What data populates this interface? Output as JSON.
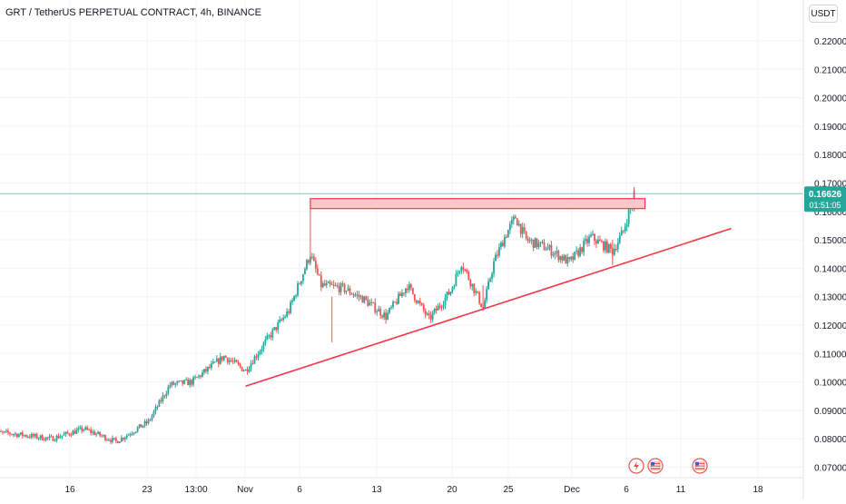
{
  "header": {
    "title": "GRT / TetherUS PERPETUAL CONTRACT, 4h, BINANCE",
    "currency_button": "USDT"
  },
  "price_tag": {
    "price": "0.16626",
    "countdown": "01:51:05"
  },
  "colors": {
    "up": "#26a69a",
    "down": "#ef5350",
    "drawing": "#f23645",
    "zone_fill": "#f8c8cc",
    "price_line": "#26a69a",
    "grid": "#f0f3fa",
    "axis_text": "#131722"
  },
  "event_icons": [
    {
      "icon": "dividend-lightning-icon",
      "date": "Dec 7"
    },
    {
      "icon": "us-flag-event-icon",
      "date": "Dec 8"
    },
    {
      "icon": "us-flag-event-icon",
      "date": "Dec 12"
    }
  ],
  "chart_data": {
    "type": "candlestick",
    "timeframe": "4h",
    "symbol": "GRT / TetherUS PERPETUAL CONTRACT",
    "exchange": "BINANCE",
    "last_price": 0.16626,
    "y_ticks": [
      "0.22000",
      "0.21000",
      "0.20000",
      "0.19000",
      "0.18000",
      "0.17000",
      "0.16000",
      "0.15000",
      "0.14000",
      "0.13000",
      "0.12000",
      "0.11000",
      "0.10000",
      "0.09000",
      "0.08000",
      "0.07000"
    ],
    "x_ticks": [
      "16",
      "23",
      "13:00",
      "Nov",
      "6",
      "13",
      "20",
      "25",
      "Dec",
      "6",
      "11",
      "18"
    ],
    "trend_points": [
      {
        "date": "Oct 10",
        "close": 0.082
      },
      {
        "date": "Oct 14",
        "close": 0.08
      },
      {
        "date": "Oct 17",
        "close": 0.0835
      },
      {
        "date": "Oct 20",
        "close": 0.079
      },
      {
        "date": "Oct 23",
        "close": 0.086
      },
      {
        "date": "Oct 25",
        "close": 0.099
      },
      {
        "date": "Oct 27",
        "close": 0.1
      },
      {
        "date": "Oct 30",
        "close": 0.109
      },
      {
        "date": "Nov 1",
        "close": 0.104
      },
      {
        "date": "Nov 3",
        "close": 0.115
      },
      {
        "date": "Nov 5",
        "close": 0.125
      },
      {
        "date": "Nov 7",
        "close": 0.145
      },
      {
        "date": "Nov 8",
        "close": 0.134
      },
      {
        "date": "Nov 10",
        "close": 0.133
      },
      {
        "date": "Nov 12",
        "close": 0.129
      },
      {
        "date": "Nov 14",
        "close": 0.123
      },
      {
        "date": "Nov 16",
        "close": 0.134
      },
      {
        "date": "Nov 18",
        "close": 0.122
      },
      {
        "date": "Nov 20",
        "close": 0.132
      },
      {
        "date": "Nov 21",
        "close": 0.142
      },
      {
        "date": "Nov 23",
        "close": 0.126
      },
      {
        "date": "Nov 24",
        "close": 0.142
      },
      {
        "date": "Nov 25",
        "close": 0.151
      },
      {
        "date": "Nov 26",
        "close": 0.158
      },
      {
        "date": "Nov 27",
        "close": 0.15
      },
      {
        "date": "Nov 29",
        "close": 0.147
      },
      {
        "date": "Dec 1",
        "close": 0.142
      },
      {
        "date": "Dec 3",
        "close": 0.151
      },
      {
        "date": "Dec 5",
        "close": 0.146
      },
      {
        "date": "Dec 6",
        "close": 0.153
      },
      {
        "date": "Dec 7",
        "close": 0.1663
      }
    ],
    "annotations": [
      {
        "type": "horizontal_zone",
        "from_date": "Nov 7",
        "to_date": "Dec 7",
        "low": 0.161,
        "high": 0.1645
      },
      {
        "type": "trend_line",
        "start": {
          "date": "Nov 1",
          "price": 0.0985
        },
        "end": {
          "date": "Dec 16",
          "price": 0.154
        }
      }
    ],
    "grid": true
  }
}
